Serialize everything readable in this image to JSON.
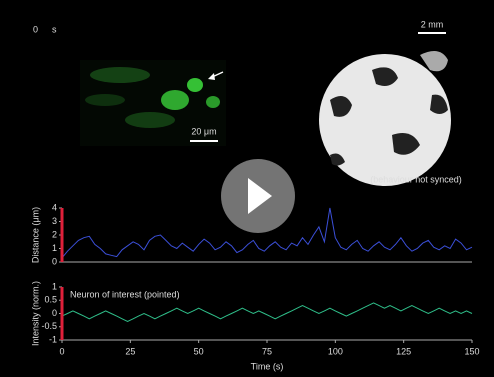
{
  "time": 0,
  "time_unit": "s",
  "ball_scale_label": "2 mm",
  "micro_scale_label": "20 μm",
  "behaviour_note": "(behaviour not synced)",
  "chart_data": [
    {
      "type": "line",
      "ylabel": "Distance (μm)",
      "color": "#3b4fd8",
      "x": [
        0,
        2,
        4,
        6,
        8,
        10,
        12,
        14,
        16,
        18,
        20,
        22,
        24,
        26,
        28,
        30,
        32,
        34,
        36,
        38,
        40,
        42,
        44,
        46,
        48,
        50,
        52,
        54,
        56,
        58,
        60,
        62,
        64,
        66,
        68,
        70,
        72,
        74,
        76,
        78,
        80,
        82,
        84,
        86,
        88,
        90,
        92,
        94,
        96,
        98,
        100,
        102,
        104,
        106,
        108,
        110,
        112,
        114,
        116,
        118,
        120,
        122,
        124,
        126,
        128,
        130,
        132,
        134,
        136,
        138,
        140,
        142,
        144,
        146,
        148,
        150
      ],
      "values": [
        0.3,
        0.8,
        1.2,
        1.6,
        1.8,
        1.9,
        1.3,
        1.0,
        0.6,
        0.5,
        0.4,
        0.9,
        1.2,
        1.5,
        1.3,
        0.9,
        1.6,
        1.9,
        2.0,
        1.6,
        1.2,
        1.0,
        1.4,
        1.1,
        0.8,
        1.3,
        1.7,
        1.4,
        0.9,
        1.1,
        1.5,
        1.2,
        0.7,
        0.9,
        1.3,
        1.6,
        1.0,
        0.8,
        1.2,
        1.5,
        1.1,
        0.9,
        1.4,
        1.2,
        1.8,
        1.3,
        2.0,
        2.6,
        1.5,
        4.0,
        1.8,
        1.1,
        0.9,
        1.3,
        1.6,
        1.0,
        0.8,
        1.2,
        1.5,
        1.1,
        0.9,
        1.3,
        1.8,
        1.2,
        0.8,
        1.0,
        1.4,
        1.6,
        1.1,
        0.9,
        1.2,
        1.0,
        1.7,
        1.4,
        0.9,
        1.1
      ],
      "xlim": [
        0,
        150
      ],
      "ylim": [
        0,
        4
      ],
      "yticks": [
        0,
        1,
        2,
        3,
        4
      ]
    },
    {
      "type": "line",
      "ylabel": "Intensity (norm.)",
      "xlabel": "Time (s)",
      "annotation": "Neuron of interest (pointed)",
      "color": "#2fbf8a",
      "x": [
        0,
        2,
        4,
        6,
        8,
        10,
        12,
        14,
        16,
        18,
        20,
        22,
        24,
        26,
        28,
        30,
        32,
        34,
        36,
        38,
        40,
        42,
        44,
        46,
        48,
        50,
        52,
        54,
        56,
        58,
        60,
        62,
        64,
        66,
        68,
        70,
        72,
        74,
        76,
        78,
        80,
        82,
        84,
        86,
        88,
        90,
        92,
        94,
        96,
        98,
        100,
        102,
        104,
        106,
        108,
        110,
        112,
        114,
        116,
        118,
        120,
        122,
        124,
        126,
        128,
        130,
        132,
        134,
        136,
        138,
        140,
        142,
        144,
        146,
        148,
        150
      ],
      "values": [
        -0.1,
        0,
        0.1,
        0,
        -0.1,
        -0.2,
        -0.1,
        0,
        0.1,
        0,
        -0.1,
        -0.2,
        -0.3,
        -0.2,
        -0.1,
        0,
        -0.1,
        -0.2,
        -0.1,
        0,
        0.1,
        0.2,
        0.1,
        0,
        0.1,
        0.2,
        0.1,
        0,
        -0.1,
        -0.2,
        -0.1,
        0,
        0.1,
        0.2,
        0.1,
        0,
        0.1,
        0,
        -0.1,
        -0.2,
        -0.1,
        0,
        0.1,
        0.2,
        0.3,
        0.2,
        0.1,
        0,
        0.1,
        0.2,
        0.1,
        0,
        -0.1,
        0,
        0.1,
        0.2,
        0.3,
        0.4,
        0.3,
        0.2,
        0.3,
        0.2,
        0.1,
        0.2,
        0.3,
        0.2,
        0.1,
        0,
        0.1,
        0.2,
        0.1,
        0,
        0.1,
        0,
        0.1,
        0
      ],
      "xlim": [
        0,
        150
      ],
      "ylim": [
        -1,
        1
      ],
      "yticks": [
        -1,
        -0.5,
        0,
        0.5,
        1
      ],
      "xticks": [
        0,
        25,
        50,
        75,
        100,
        125,
        150
      ]
    }
  ]
}
